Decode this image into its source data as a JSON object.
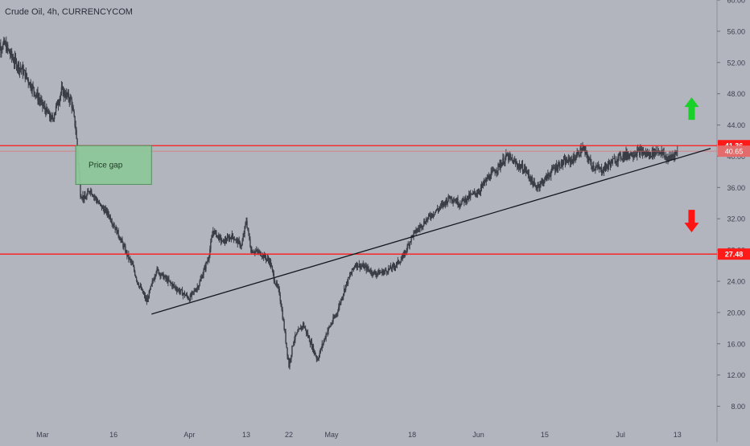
{
  "header": {
    "symbol_title": "Crude Oil, 4h, CURRENCYCOM"
  },
  "colors": {
    "background": "#b2b5be",
    "candle": "#3a3d45",
    "level_line": "#ff1a1a",
    "current_price_line": "#e36b6b",
    "trendline": "#131722",
    "gap_box_fill": "#8fc79a",
    "gap_box_border": "#4f8f5c",
    "arrow_up": "#19d128",
    "arrow_down": "#ff1414",
    "axis_text": "#3d4150"
  },
  "chart_data": {
    "type": "candlestick",
    "symbol": "Crude Oil",
    "interval": "4h",
    "source": "CURRENCYCOM",
    "ylim": [
      6,
      60
    ],
    "y_ticks": [
      "60.00",
      "56.00",
      "52.00",
      "48.00",
      "44.00",
      "40.00",
      "36.00",
      "32.00",
      "28.00",
      "24.00",
      "20.00",
      "16.00",
      "12.00",
      "8.00"
    ],
    "x_ticks": [
      "Mar",
      "16",
      "Apr",
      "13",
      "22",
      "May",
      "18",
      "Jun",
      "15",
      "Jul",
      "13"
    ],
    "x_range": [
      "2020-02-20",
      "2020-07-20"
    ],
    "x_tick_dates": [
      "2020-03-01",
      "2020-03-16",
      "2020-04-01",
      "2020-04-13",
      "2020-04-22",
      "2020-05-01",
      "2020-05-18",
      "2020-06-01",
      "2020-06-15",
      "2020-07-01",
      "2020-07-13"
    ],
    "close_path": [
      [
        "2020-02-20",
        53.8
      ],
      [
        "2020-02-22",
        54.3
      ],
      [
        "2020-02-24",
        52.2
      ],
      [
        "2020-02-26",
        50.8
      ],
      [
        "2020-02-28",
        48.6
      ],
      [
        "2020-03-01",
        46.5
      ],
      [
        "2020-03-03",
        44.6
      ],
      [
        "2020-03-05",
        48.4
      ],
      [
        "2020-03-07",
        47.2
      ],
      [
        "2020-03-08",
        43.5
      ],
      [
        "2020-03-09",
        35.2
      ],
      [
        "2020-03-10",
        34.5
      ],
      [
        "2020-03-11",
        35.8
      ],
      [
        "2020-03-13",
        33.8
      ],
      [
        "2020-03-15",
        32.5
      ],
      [
        "2020-03-17",
        30.0
      ],
      [
        "2020-03-19",
        27.2
      ],
      [
        "2020-03-20",
        26.0
      ],
      [
        "2020-03-21",
        24.0
      ],
      [
        "2020-03-23",
        21.4
      ],
      [
        "2020-03-25",
        25.5
      ],
      [
        "2020-03-27",
        24.3
      ],
      [
        "2020-03-29",
        23.2
      ],
      [
        "2020-04-01",
        21.8
      ],
      [
        "2020-04-03",
        23.6
      ],
      [
        "2020-04-05",
        27.0
      ],
      [
        "2020-04-06",
        30.5
      ],
      [
        "2020-04-08",
        29.0
      ],
      [
        "2020-04-10",
        29.8
      ],
      [
        "2020-04-12",
        28.5
      ],
      [
        "2020-04-13",
        31.8
      ],
      [
        "2020-04-14",
        28.0
      ],
      [
        "2020-04-16",
        27.6
      ],
      [
        "2020-04-18",
        26.5
      ],
      [
        "2020-04-19",
        24.0
      ],
      [
        "2020-04-20",
        22.5
      ],
      [
        "2020-04-21",
        18.0
      ],
      [
        "2020-04-22",
        13.2
      ],
      [
        "2020-04-23",
        16.5
      ],
      [
        "2020-04-25",
        18.5
      ],
      [
        "2020-04-27",
        15.5
      ],
      [
        "2020-04-28",
        14.0
      ],
      [
        "2020-04-30",
        17.5
      ],
      [
        "2020-05-02",
        19.8
      ],
      [
        "2020-05-04",
        23.5
      ],
      [
        "2020-05-06",
        26.2
      ],
      [
        "2020-05-08",
        25.8
      ],
      [
        "2020-05-10",
        25.0
      ],
      [
        "2020-05-12",
        25.2
      ],
      [
        "2020-05-14",
        25.8
      ],
      [
        "2020-05-16",
        27.0
      ],
      [
        "2020-05-18",
        29.8
      ],
      [
        "2020-05-20",
        31.2
      ],
      [
        "2020-05-22",
        32.5
      ],
      [
        "2020-05-24",
        33.5
      ],
      [
        "2020-05-26",
        34.8
      ],
      [
        "2020-05-28",
        34.0
      ],
      [
        "2020-05-30",
        34.8
      ],
      [
        "2020-06-01",
        35.5
      ],
      [
        "2020-06-03",
        37.2
      ],
      [
        "2020-06-05",
        38.5
      ],
      [
        "2020-06-07",
        40.0
      ],
      [
        "2020-06-09",
        39.0
      ],
      [
        "2020-06-11",
        38.2
      ],
      [
        "2020-06-13",
        36.0
      ],
      [
        "2020-06-15",
        37.0
      ],
      [
        "2020-06-17",
        38.5
      ],
      [
        "2020-06-19",
        39.2
      ],
      [
        "2020-06-21",
        39.6
      ],
      [
        "2020-06-23",
        41.0
      ],
      [
        "2020-06-25",
        38.8
      ],
      [
        "2020-06-27",
        38.2
      ],
      [
        "2020-06-29",
        39.2
      ],
      [
        "2020-07-01",
        40.0
      ],
      [
        "2020-07-03",
        40.3
      ],
      [
        "2020-07-05",
        40.6
      ],
      [
        "2020-07-07",
        40.2
      ],
      [
        "2020-07-09",
        40.8
      ],
      [
        "2020-07-11",
        39.6
      ],
      [
        "2020-07-13",
        40.65
      ]
    ],
    "horizontal_levels": [
      {
        "price": 41.36,
        "label": "41.36"
      },
      {
        "price": 27.48,
        "label": "27.48"
      }
    ],
    "current_price": {
      "price": 40.65,
      "label": "40.65"
    },
    "trendline": {
      "from": [
        "2020-03-24",
        19.8
      ],
      "to": [
        "2020-07-20",
        41.0
      ]
    },
    "price_gap_box": {
      "label": "Price gap",
      "from_date": "2020-03-08",
      "to_date": "2020-03-24",
      "top_price": 41.36,
      "bottom_price": 36.4
    },
    "annotations": [
      {
        "type": "arrow-up",
        "date": "2020-07-16",
        "price": 46.0
      },
      {
        "type": "arrow-down",
        "date": "2020-07-16",
        "price": 31.8
      }
    ]
  }
}
